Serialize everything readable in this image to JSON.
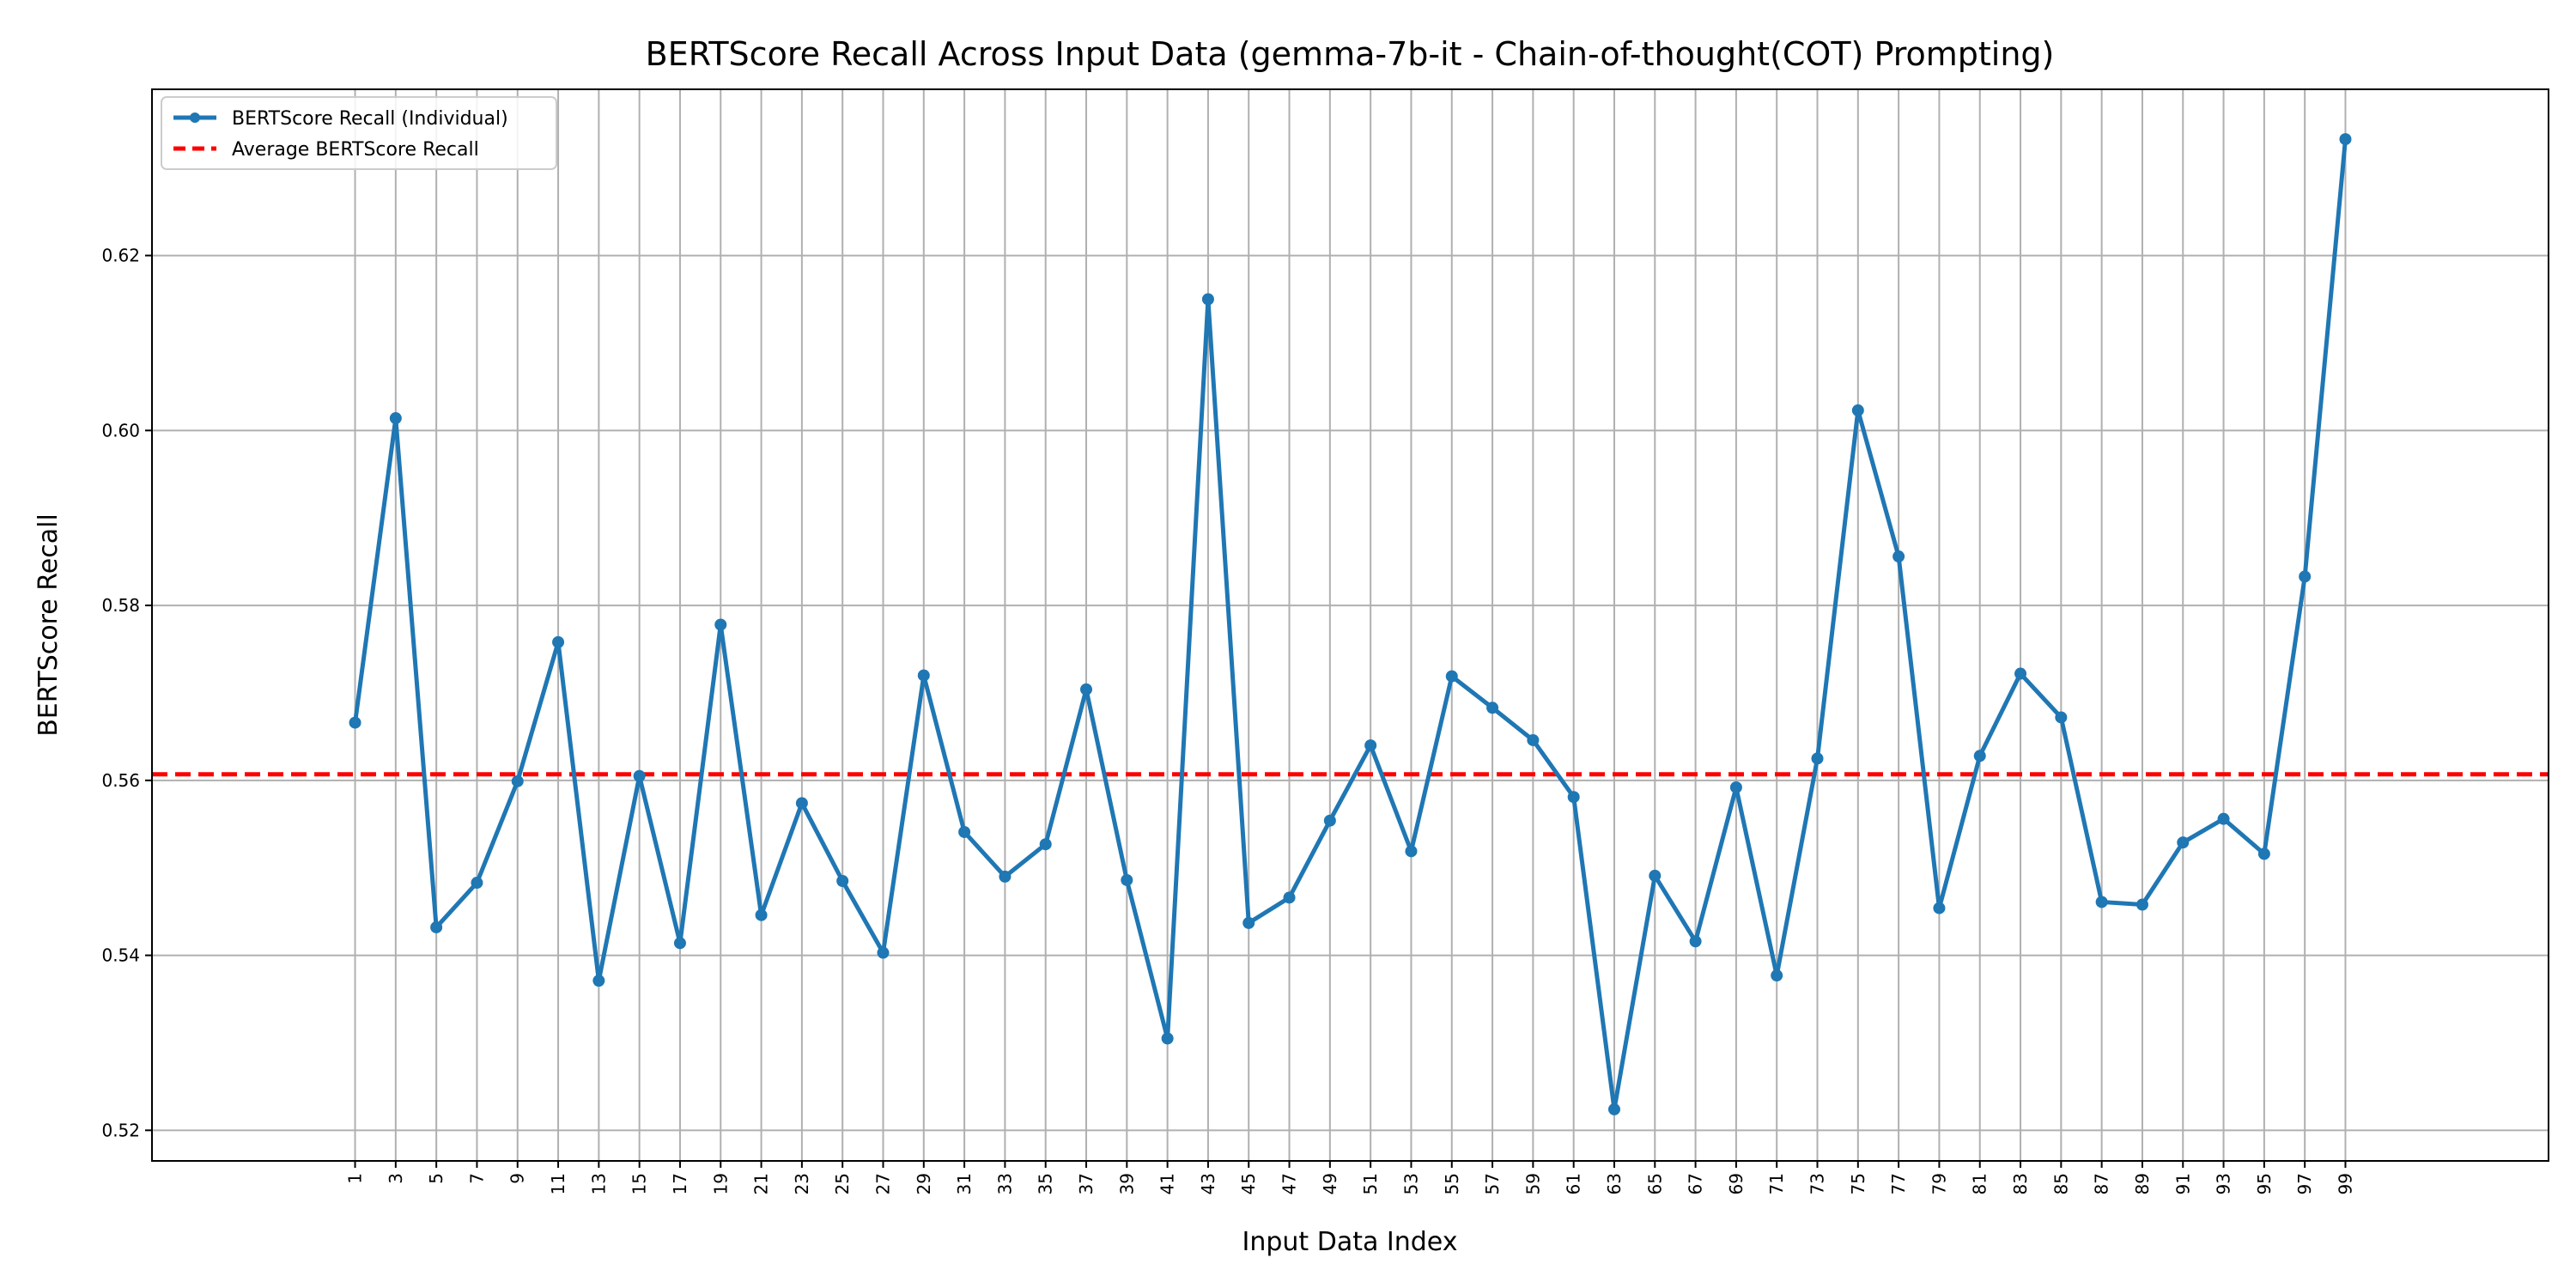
{
  "chart_data": {
    "type": "line",
    "title": "BERTScore Recall Across Input Data (gemma-7b-it - Chain-of-thought(COT) Prompting)",
    "xlabel": "Input Data Index",
    "ylabel": "BERTScore Recall",
    "x": [
      1,
      3,
      5,
      7,
      9,
      11,
      13,
      15,
      17,
      19,
      21,
      23,
      25,
      27,
      29,
      31,
      33,
      35,
      37,
      39,
      41,
      43,
      45,
      47,
      49,
      51,
      53,
      55,
      57,
      59,
      61,
      63,
      65,
      67,
      69,
      71,
      73,
      75,
      77,
      79,
      81,
      83,
      85,
      87,
      89,
      91,
      93,
      95,
      97,
      99
    ],
    "xtick_labels": [
      "1",
      "3",
      "5",
      "7",
      "9",
      "11",
      "13",
      "15",
      "17",
      "19",
      "21",
      "23",
      "25",
      "27",
      "29",
      "31",
      "33",
      "35",
      "37",
      "39",
      "41",
      "43",
      "45",
      "47",
      "49",
      "51",
      "53",
      "55",
      "57",
      "59",
      "61",
      "63",
      "65",
      "67",
      "69",
      "71",
      "73",
      "75",
      "77",
      "79",
      "81",
      "83",
      "85",
      "87",
      "89",
      "91",
      "93",
      "95",
      "97",
      "99"
    ],
    "xlim": [
      -9,
      109
    ],
    "ylim": [
      0.5165,
      0.639
    ],
    "yticks": [
      0.52,
      0.54,
      0.56,
      0.58,
      0.6,
      0.62
    ],
    "ytick_labels": [
      "0.52",
      "0.54",
      "0.56",
      "0.58",
      "0.60",
      "0.62"
    ],
    "grid": true,
    "legend_position": "top-left",
    "series": [
      {
        "name": "BERTScore Recall (Individual)",
        "color": "#1f77b4",
        "values": [
          0.5666,
          0.6014,
          0.5432,
          0.5483,
          0.5599,
          0.5758,
          0.5371,
          0.5605,
          0.5414,
          0.5778,
          0.5446,
          0.5574,
          0.5485,
          0.5403,
          0.572,
          0.5541,
          0.549,
          0.5527,
          0.5704,
          0.5486,
          0.5305,
          0.615,
          0.5437,
          0.5466,
          0.5554,
          0.564,
          0.5519,
          0.5719,
          0.5683,
          0.5646,
          0.5581,
          0.5224,
          0.5491,
          0.5416,
          0.5592,
          0.5377,
          0.5625,
          0.6023,
          0.5856,
          0.5454,
          0.5628,
          0.5722,
          0.5672,
          0.5461,
          0.5458,
          0.5529,
          0.5556,
          0.5516,
          0.5833,
          0.6333
        ]
      }
    ],
    "reference_line": {
      "name": "Average BERTScore Recall",
      "value": 0.5607,
      "color": "#ff0000"
    }
  }
}
